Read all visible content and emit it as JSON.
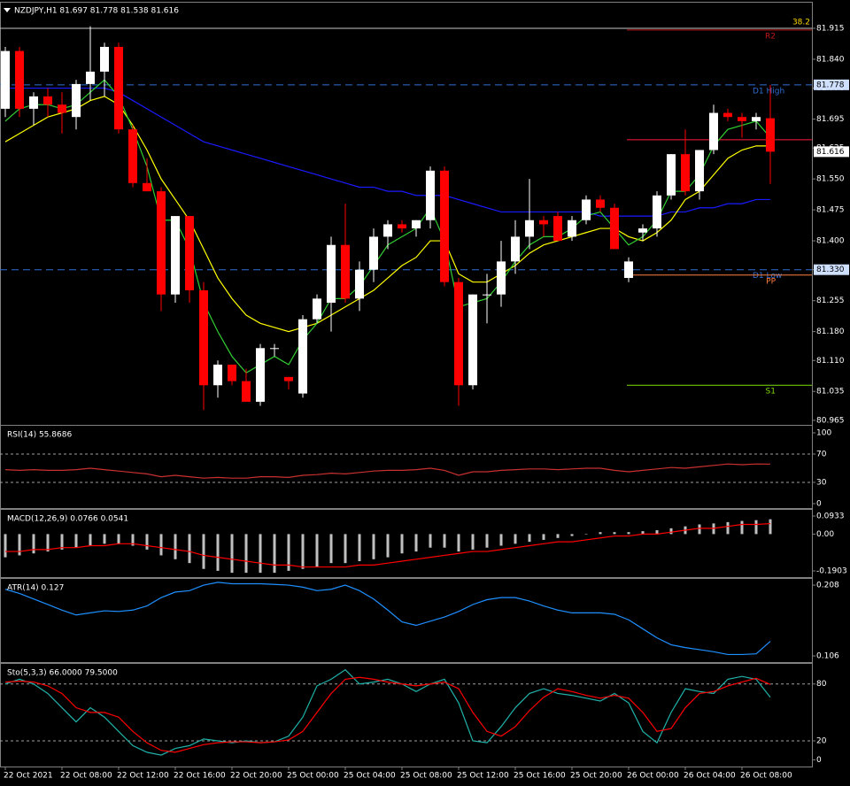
{
  "chart_data": [
    {
      "type": "candlestick",
      "title": "NZDJPY,H1  81.697 81.778 81.538 81.616",
      "categories": [
        "22 Oct 2021",
        null,
        null,
        null,
        "22 Oct 08:00",
        null,
        null,
        null,
        "22 Oct 12:00",
        null,
        null,
        null,
        "22 Oct 16:00",
        null,
        null,
        null,
        "22 Oct 20:00",
        null,
        null,
        null,
        "25 Oct 00:00",
        null,
        null,
        null,
        "25 Oct 04:00",
        null,
        null,
        null,
        "25 Oct 08:00",
        null,
        null,
        null,
        "25 Oct 12:00",
        null,
        null,
        null,
        "25 Oct 16:00",
        null,
        null,
        null,
        "25 Oct 20:00",
        null,
        null,
        null,
        "26 Oct 00:00",
        null,
        null,
        null,
        "26 Oct 04:00",
        null,
        null,
        null,
        "26 Oct 08:00",
        null,
        null
      ],
      "open": [
        81.72,
        81.86,
        81.72,
        81.75,
        81.73,
        81.7,
        81.78,
        81.81,
        81.87,
        81.67,
        81.54,
        81.52,
        81.27,
        81.46,
        81.28,
        81.05,
        81.1,
        81.06,
        81.01,
        81.14,
        81.07,
        81.03,
        81.21,
        81.25,
        81.39,
        81.26,
        81.33,
        81.41,
        81.44,
        81.43,
        81.45,
        81.57,
        81.3,
        81.05,
        81.27,
        81.27,
        81.35,
        81.41,
        81.45,
        81.46,
        81.41,
        81.45,
        81.5,
        81.48,
        81.31,
        81.42,
        81.43,
        81.51,
        81.61,
        81.52,
        81.62,
        81.71,
        81.7,
        81.69,
        81.697
      ],
      "high": [
        81.87,
        81.87,
        81.76,
        81.77,
        81.76,
        81.79,
        81.92,
        81.88,
        81.88,
        81.68,
        81.6,
        81.53,
        81.46,
        81.46,
        81.3,
        81.11,
        81.1,
        81.09,
        81.15,
        81.15,
        81.07,
        81.22,
        81.27,
        81.41,
        81.49,
        81.35,
        81.43,
        81.45,
        81.45,
        81.45,
        81.58,
        81.58,
        81.31,
        81.27,
        81.32,
        81.4,
        81.45,
        81.55,
        81.46,
        81.47,
        81.46,
        81.51,
        81.51,
        81.49,
        81.36,
        81.44,
        81.52,
        81.61,
        81.67,
        81.62,
        81.73,
        81.72,
        81.71,
        81.71,
        81.778
      ],
      "low": [
        81.7,
        81.7,
        81.68,
        81.7,
        81.66,
        81.67,
        81.74,
        81.75,
        81.66,
        81.53,
        81.52,
        81.23,
        81.25,
        81.25,
        80.99,
        81.02,
        81.05,
        81.01,
        81.0,
        81.12,
        81.04,
        81.02,
        81.2,
        81.18,
        81.25,
        81.23,
        81.3,
        81.38,
        81.42,
        81.41,
        81.43,
        81.29,
        81.0,
        81.04,
        81.2,
        81.24,
        81.32,
        81.38,
        81.41,
        81.4,
        81.4,
        81.44,
        81.47,
        81.38,
        81.3,
        81.4,
        81.41,
        81.5,
        81.51,
        81.5,
        81.61,
        81.69,
        81.65,
        81.67,
        81.538
      ],
      "close": [
        81.86,
        81.72,
        81.75,
        81.73,
        81.71,
        81.78,
        81.81,
        81.87,
        81.67,
        81.54,
        81.52,
        81.27,
        81.46,
        81.28,
        81.05,
        81.1,
        81.06,
        81.01,
        81.14,
        81.14,
        81.06,
        81.21,
        81.26,
        81.39,
        81.26,
        81.33,
        81.41,
        81.44,
        81.43,
        81.45,
        81.57,
        81.3,
        81.05,
        81.27,
        81.27,
        81.35,
        81.41,
        81.45,
        81.44,
        81.4,
        81.45,
        81.5,
        81.48,
        81.38,
        81.35,
        81.43,
        81.51,
        81.61,
        81.52,
        81.62,
        81.71,
        81.7,
        81.69,
        81.7,
        81.616
      ],
      "up_color": "#ffffff",
      "down_color": "#ff0000",
      "series": [
        {
          "color": "#1a1aff",
          "values": [
            81.77,
            81.77,
            81.77,
            81.77,
            81.77,
            81.77,
            81.77,
            81.77,
            81.76,
            81.74,
            81.72,
            81.7,
            81.68,
            81.66,
            81.64,
            81.63,
            81.62,
            81.61,
            81.6,
            81.59,
            81.58,
            81.57,
            81.56,
            81.55,
            81.54,
            81.53,
            81.53,
            81.52,
            81.52,
            81.51,
            81.51,
            81.51,
            81.5,
            81.49,
            81.48,
            81.47,
            81.47,
            81.47,
            81.47,
            81.47,
            81.47,
            81.47,
            81.46,
            81.46,
            81.46,
            81.46,
            81.46,
            81.47,
            81.47,
            81.48,
            81.48,
            81.49,
            81.49,
            81.5,
            81.5
          ]
        },
        {
          "color": "#ffff00",
          "values": [
            81.64,
            81.66,
            81.68,
            81.7,
            81.71,
            81.72,
            81.74,
            81.75,
            81.73,
            81.68,
            81.62,
            81.55,
            81.5,
            81.45,
            81.38,
            81.31,
            81.26,
            81.22,
            81.2,
            81.19,
            81.18,
            81.19,
            81.2,
            81.22,
            81.24,
            81.26,
            81.28,
            81.31,
            81.34,
            81.36,
            81.4,
            81.4,
            81.32,
            81.3,
            81.3,
            81.32,
            81.34,
            81.37,
            81.39,
            81.4,
            81.41,
            81.42,
            81.43,
            81.43,
            81.41,
            81.4,
            81.42,
            81.45,
            81.5,
            81.52,
            81.56,
            81.6,
            81.62,
            81.63,
            81.63
          ]
        },
        {
          "color": "#32cd32",
          "values": [
            81.69,
            81.72,
            81.73,
            81.73,
            81.72,
            81.73,
            81.76,
            81.79,
            81.75,
            81.67,
            81.58,
            81.45,
            81.45,
            81.38,
            81.25,
            81.18,
            81.12,
            81.08,
            81.1,
            81.12,
            81.1,
            81.16,
            81.2,
            81.26,
            81.26,
            81.29,
            81.34,
            81.39,
            81.41,
            81.43,
            81.48,
            81.4,
            81.24,
            81.25,
            81.26,
            81.3,
            81.35,
            81.39,
            81.41,
            81.41,
            81.43,
            81.46,
            81.47,
            81.43,
            81.39,
            81.41,
            81.45,
            81.52,
            81.52,
            81.56,
            81.63,
            81.67,
            81.68,
            81.69,
            81.65
          ]
        }
      ],
      "levels": [
        {
          "label": "38.2",
          "value": 81.915,
          "color": "#c8c8c8",
          "style": "fib"
        },
        {
          "label": "D1 High",
          "value": 81.778,
          "color": "#2f6fd6",
          "style": "dashed"
        },
        {
          "label": "D1 Low",
          "value": 81.33,
          "color": "#2f6fd6",
          "style": "dashed"
        },
        {
          "label": "R2",
          "value": 81.911,
          "color": "#c01818",
          "style": "solid"
        },
        {
          "value": 81.645,
          "color": "#ff1a3c",
          "style": "solid"
        },
        {
          "label": "PP",
          "value": 81.317,
          "color": "#ff8040",
          "style": "solid"
        },
        {
          "label": "S1",
          "value": 81.05,
          "color": "#7cdc00",
          "style": "solid"
        }
      ],
      "price_labels": [
        {
          "value": 81.778,
          "color": "#cfe0ff"
        },
        {
          "value": 81.616,
          "color": "#ffffff"
        },
        {
          "value": 81.33,
          "label": "81.330",
          "color": "#cfe0ff"
        }
      ],
      "ylim": [
        80.954,
        81.975
      ],
      "yticks": [
        81.915,
        {
          "value": 81.84,
          "label": "81.840"
        },
        {
          "value": 81.77,
          "label": "81.770"
        },
        81.695,
        81.625,
        {
          "value": 81.55,
          "label": "81.550"
        },
        81.475,
        {
          "value": 81.4,
          "label": "81.400"
        },
        {
          "value": 81.33,
          "label": "81.330"
        },
        81.255,
        {
          "value": 81.18,
          "label": "81.180"
        },
        {
          "value": 81.11,
          "label": "81.110"
        },
        81.035,
        80.965
      ]
    },
    {
      "type": "line",
      "title": "RSI(14) 55.8686",
      "series": [
        {
          "color": "#c83030",
          "values": [
            48,
            47,
            48,
            47,
            47,
            48,
            50,
            48,
            46,
            44,
            42,
            38,
            40,
            38,
            36,
            37,
            36,
            36,
            38,
            38,
            37,
            40,
            41,
            43,
            42,
            44,
            46,
            47,
            47,
            48,
            50,
            47,
            40,
            45,
            45,
            47,
            48,
            49,
            49,
            48,
            49,
            50,
            50,
            47,
            45,
            47,
            49,
            51,
            50,
            52,
            54,
            56,
            55,
            56,
            55.8686
          ]
        }
      ],
      "levels": [
        70,
        30
      ],
      "ylim": [
        -6.25,
        108.75
      ],
      "yticks": [
        100,
        70,
        30,
        0
      ]
    },
    {
      "type": "bar",
      "title": "MACD(12,26,9) 0.0766 0.0541",
      "color": "#c0c0c0",
      "values": [
        -0.12,
        -0.11,
        -0.1,
        -0.09,
        -0.08,
        -0.07,
        -0.06,
        -0.05,
        -0.05,
        -0.06,
        -0.08,
        -0.11,
        -0.13,
        -0.15,
        -0.18,
        -0.19,
        -0.2,
        -0.2,
        -0.2,
        -0.2,
        -0.19,
        -0.18,
        -0.17,
        -0.15,
        -0.15,
        -0.14,
        -0.13,
        -0.12,
        -0.1,
        -0.09,
        -0.07,
        -0.07,
        -0.09,
        -0.08,
        -0.07,
        -0.06,
        -0.05,
        -0.04,
        -0.03,
        -0.02,
        -0.01,
        0,
        0.01,
        0.01,
        0.01,
        0.015,
        0.02,
        0.03,
        0.04,
        0.05,
        0.055,
        0.062,
        0.068,
        0.072,
        0.0766
      ],
      "series": [
        {
          "color": "#ff0000",
          "values": [
            -0.09,
            -0.09,
            -0.08,
            -0.08,
            -0.07,
            -0.07,
            -0.06,
            -0.06,
            -0.05,
            -0.05,
            -0.06,
            -0.07,
            -0.08,
            -0.09,
            -0.11,
            -0.12,
            -0.13,
            -0.14,
            -0.15,
            -0.16,
            -0.16,
            -0.17,
            -0.17,
            -0.17,
            -0.17,
            -0.16,
            -0.16,
            -0.15,
            -0.14,
            -0.13,
            -0.12,
            -0.11,
            -0.1,
            -0.09,
            -0.09,
            -0.08,
            -0.07,
            -0.06,
            -0.05,
            -0.04,
            -0.04,
            -0.03,
            -0.02,
            -0.01,
            -0.01,
            0,
            0,
            0.01,
            0.02,
            0.03,
            0.03,
            0.04,
            0.05,
            0.05,
            0.0541
          ]
        }
      ],
      "ylim": [
        -0.2224,
        0.1208
      ],
      "yticks": [
        0.0933,
        {
          "value": 0,
          "label": "0.00"
        },
        -0.1903
      ]
    },
    {
      "type": "line",
      "title": "ATR(14) 0.127",
      "series": [
        {
          "color": "#1e90ff",
          "values": [
            0.202,
            0.196,
            0.188,
            0.18,
            0.172,
            0.165,
            0.168,
            0.171,
            0.17,
            0.172,
            0.178,
            0.19,
            0.198,
            0.2,
            0.208,
            0.212,
            0.21,
            0.21,
            0.21,
            0.209,
            0.208,
            0.205,
            0.2,
            0.202,
            0.208,
            0.2,
            0.188,
            0.172,
            0.155,
            0.15,
            0.156,
            0.162,
            0.17,
            0.18,
            0.187,
            0.19,
            0.19,
            0.185,
            0.178,
            0.172,
            0.168,
            0.168,
            0.168,
            0.166,
            0.158,
            0.145,
            0.132,
            0.122,
            0.118,
            0.115,
            0.112,
            0.108,
            0.108,
            0.109,
            0.127
          ]
        }
      ],
      "ylim": [
        0.0971,
        0.2157
      ],
      "yticks": [
        0.208,
        0.106
      ]
    },
    {
      "type": "line",
      "title": "Sto(5,3,3) 66.0000 79.5000",
      "series": [
        {
          "color": "#20b2aa",
          "values": [
            80,
            85,
            80,
            70,
            55,
            40,
            55,
            45,
            30,
            15,
            8,
            5,
            12,
            15,
            22,
            20,
            18,
            20,
            18,
            19,
            25,
            45,
            78,
            85,
            95,
            80,
            82,
            85,
            80,
            72,
            80,
            85,
            60,
            20,
            18,
            35,
            55,
            70,
            75,
            70,
            68,
            65,
            62,
            70,
            60,
            30,
            18,
            50,
            75,
            72,
            70,
            85,
            88,
            85,
            66
          ]
        },
        {
          "color": "#ff0000",
          "values": [
            82,
            83,
            82,
            78,
            70,
            55,
            50,
            50,
            45,
            30,
            18,
            10,
            8,
            12,
            16,
            18,
            19,
            19,
            18,
            19,
            21,
            30,
            50,
            70,
            85,
            87,
            85,
            82,
            80,
            78,
            80,
            82,
            75,
            50,
            30,
            25,
            35,
            52,
            66,
            75,
            72,
            68,
            65,
            68,
            65,
            50,
            30,
            33,
            55,
            70,
            72,
            78,
            82,
            86,
            79.5
          ]
        }
      ],
      "levels": [
        80,
        20
      ],
      "ylim": [
        -7.06,
        100.3
      ],
      "yticks": [
        80,
        20,
        0
      ]
    }
  ]
}
